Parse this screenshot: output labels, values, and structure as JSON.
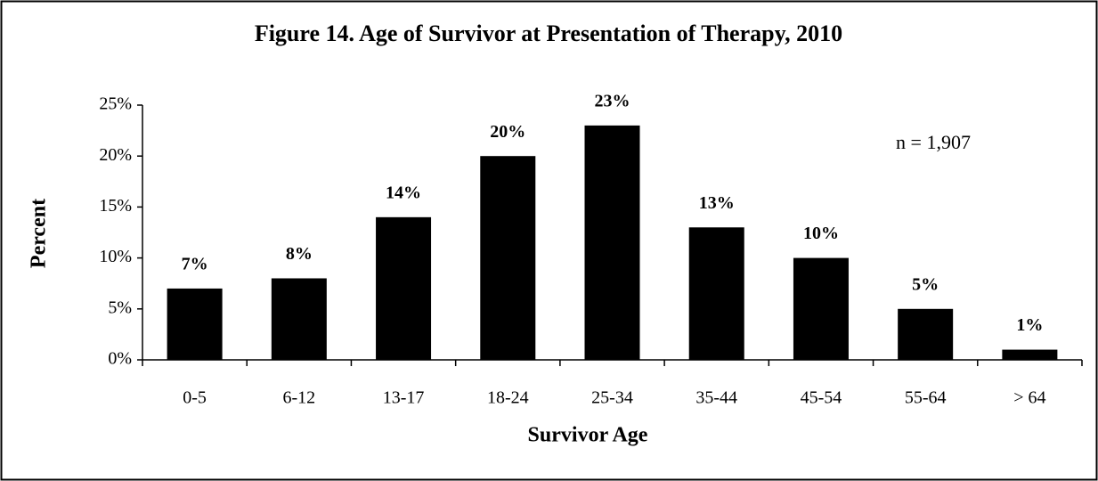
{
  "chart_data": {
    "type": "bar",
    "title": "Figure 14.  Age of Survivor at Presentation of Therapy, 2010",
    "x_label": "Survivor Age",
    "y_label": "Percent",
    "annotation": "n = 1,907",
    "categories": [
      "0-5",
      "6-12",
      "13-17",
      "18-24",
      "25-34",
      "35-44",
      "45-54",
      "55-64",
      "> 64"
    ],
    "values": [
      7,
      8,
      14,
      20,
      23,
      13,
      10,
      5,
      1
    ],
    "value_labels": [
      "7%",
      "8%",
      "14%",
      "20%",
      "23%",
      "13%",
      "10%",
      "5%",
      "1%"
    ],
    "color": "#000000",
    "ylim": [
      0,
      25
    ],
    "yticks": [
      {
        "value": 0,
        "label": "0%"
      },
      {
        "value": 5,
        "label": "5%"
      },
      {
        "value": 10,
        "label": "10%"
      },
      {
        "value": 15,
        "label": "15%"
      },
      {
        "value": 20,
        "label": "20%"
      },
      {
        "value": 25,
        "label": "25%"
      }
    ],
    "grid": false
  }
}
